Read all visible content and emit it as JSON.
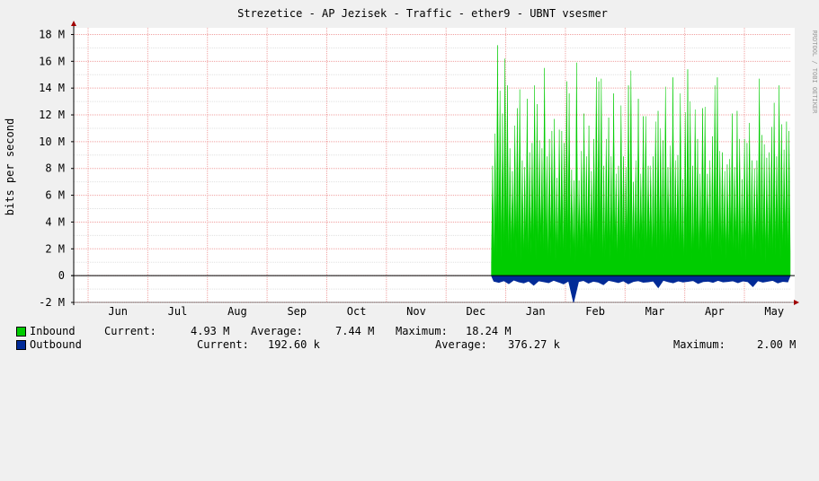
{
  "chart_data": {
    "type": "area",
    "title": "Strezetice - AP Jezisek - Traffic - ether9 - UBNT vsesmer",
    "ylabel": "bits per second",
    "watermark": "RRDTOOL / TOBI OETIKER",
    "ylim": [
      -2000000,
      18500000
    ],
    "y_ticks": [
      {
        "value": -2000000,
        "label": "-2 M"
      },
      {
        "value": 0,
        "label": "0"
      },
      {
        "value": 2000000,
        "label": "2 M"
      },
      {
        "value": 4000000,
        "label": "4 M"
      },
      {
        "value": 6000000,
        "label": "6 M"
      },
      {
        "value": 8000000,
        "label": "8 M"
      },
      {
        "value": 10000000,
        "label": "10 M"
      },
      {
        "value": 12000000,
        "label": "12 M"
      },
      {
        "value": 14000000,
        "label": "14 M"
      },
      {
        "value": 16000000,
        "label": "16 M"
      },
      {
        "value": 18000000,
        "label": "18 M"
      }
    ],
    "x_months": [
      "Jun",
      "Jul",
      "Aug",
      "Sep",
      "Oct",
      "Nov",
      "Dec",
      "Jan",
      "Feb",
      "Mar",
      "Apr",
      "May"
    ],
    "data_start_month": "Jan",
    "series": [
      {
        "name": "Inbound",
        "color": "#00cc00",
        "peaks": [
          8200000,
          10600000,
          17200000,
          13800000,
          12100000,
          16200000,
          14200000,
          9500000,
          7800000,
          11200000,
          12500000,
          13900000,
          8600000,
          8100000,
          13200000,
          9200000,
          9900000,
          14200000,
          12800000,
          10100000,
          9500000,
          15500000,
          8900000,
          10200000,
          10800000,
          11700000,
          7300000,
          10900000,
          10800000,
          9900000,
          14500000,
          13600000,
          7900000,
          7100000,
          15900000,
          7100000,
          9300000,
          12100000,
          8900000,
          11200000,
          7800000,
          10200000,
          14800000,
          14500000,
          14700000,
          8200000,
          10200000,
          11800000,
          8900000,
          13600000,
          7600000,
          8200000,
          12700000,
          8900000,
          8100000,
          14200000,
          15300000,
          7000000,
          8600000,
          13200000,
          7600000,
          11900000,
          11900000,
          8200000,
          8200000,
          8900000,
          11500000,
          12300000,
          11000000,
          10100000,
          14100000,
          8100000,
          9700000,
          14800000,
          8600000,
          9000000,
          13600000,
          7200000,
          12200000,
          15400000,
          13000000,
          8200000,
          12400000,
          10200000,
          7600000,
          12500000,
          12600000,
          7600000,
          8600000,
          10400000,
          14200000,
          14800000,
          9300000,
          9200000,
          7800000,
          8300000,
          8700000,
          12100000,
          8100000,
          12300000,
          10200000,
          7200000,
          10200000,
          9900000,
          11400000,
          8600000,
          8000000,
          8600000,
          14700000,
          10500000,
          9800000,
          8800000,
          9200000,
          11100000,
          12900000,
          8900000,
          14200000,
          11300000,
          9400000,
          11500000,
          10800000
        ],
        "current": "4.93 M",
        "average": "7.44 M",
        "maximum": "18.24 M"
      },
      {
        "name": "Outbound",
        "color": "#002a97",
        "troughs": [
          -420000,
          -510000,
          -380000,
          -600000,
          -330000,
          -470000,
          -550000,
          -410000,
          -720000,
          -390000,
          -460000,
          -530000,
          -350000,
          -480000,
          -620000,
          -400000,
          -2000000,
          -450000,
          -370000,
          -560000,
          -420000,
          -490000,
          -680000,
          -360000,
          -430000,
          -520000,
          -390000,
          -610000,
          -440000,
          -380000,
          -500000,
          -470000,
          -410000,
          -900000,
          -350000,
          -460000,
          -540000,
          -400000,
          -480000,
          -430000,
          -370000,
          -590000,
          -450000,
          -420000,
          -510000,
          -360000,
          -470000,
          -440000,
          -390000,
          -530000,
          -400000,
          -460000,
          -820000,
          -380000,
          -490000,
          -420000,
          -360000,
          -550000,
          -430000,
          -470000
        ],
        "current": "192.60 k",
        "average": "376.27 k",
        "maximum": "2.00 M"
      }
    ],
    "legend_labels": {
      "current": "Current:",
      "average": "Average:",
      "maximum": "Maximum:"
    },
    "grid": true,
    "legend_position": "bottom"
  }
}
